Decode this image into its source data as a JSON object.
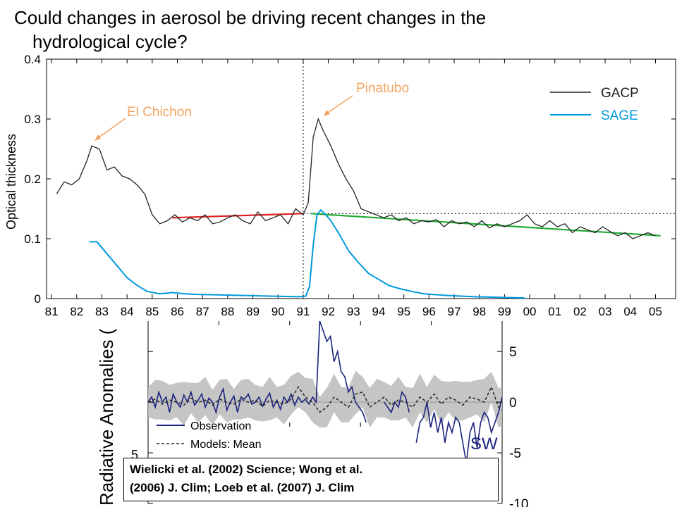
{
  "slide": {
    "title_line1": "Could changes in aerosol be driving recent changes in the",
    "title_line2": "hydrological  cycle?",
    "citation_line1": "Wielicki et al. (2002) Science; Wong et al.",
    "citation_line2": "(2006) J. Clim; Loeb et al. (2007) J. Clim"
  },
  "chart_data": [
    {
      "type": "line",
      "ylabel": "Optical thickness",
      "xlim": [
        1981,
        2006
      ],
      "ylim": [
        0,
        0.4
      ],
      "x_ticks": [
        1981,
        1982,
        1983,
        1984,
        1985,
        1986,
        1987,
        1988,
        1989,
        1990,
        1991,
        1992,
        1993,
        1994,
        1995,
        1996,
        1997,
        1998,
        1999,
        2000,
        2001,
        2002,
        2003,
        2004,
        2005
      ],
      "x_tick_labels": [
        "81",
        "82",
        "83",
        "84",
        "85",
        "86",
        "87",
        "88",
        "89",
        "90",
        "91",
        "92",
        "93",
        "94",
        "95",
        "96",
        "97",
        "98",
        "99",
        "00",
        "01",
        "02",
        "03",
        "04",
        "05"
      ],
      "y_ticks": [
        0,
        0.1,
        0.2,
        0.3,
        0.4
      ],
      "y_tick_labels": [
        "0",
        "0.1",
        "0.2",
        "0.3",
        "0.4"
      ],
      "legend_position": "top-right",
      "annotations": [
        {
          "text": "El Chichon",
          "color": "#f4a460",
          "points_to": [
            1982.6,
            0.26
          ]
        },
        {
          "text": "Pinatubo",
          "color": "#f4a460",
          "points_to": [
            1991.6,
            0.3
          ]
        }
      ],
      "series": [
        {
          "name": "GACP",
          "color": "#222222",
          "x": [
            1981.4,
            1981.7,
            1982.0,
            1982.3,
            1982.6,
            1982.8,
            1983.1,
            1983.4,
            1983.7,
            1984.0,
            1984.3,
            1984.6,
            1984.9,
            1985.2,
            1985.5,
            1985.8,
            1986.1,
            1986.4,
            1986.7,
            1987.0,
            1987.3,
            1987.6,
            1987.9,
            1988.2,
            1988.5,
            1988.8,
            1989.1,
            1989.4,
            1989.7,
            1990.0,
            1990.3,
            1990.6,
            1990.9,
            1991.2,
            1991.4,
            1991.6,
            1991.8,
            1992.0,
            1992.3,
            1992.6,
            1992.9,
            1993.2,
            1993.5,
            1993.8,
            1994.1,
            1994.4,
            1994.7,
            1995.0,
            1995.3,
            1995.6,
            1995.9,
            1996.2,
            1996.5,
            1996.8,
            1997.1,
            1997.4,
            1997.7,
            1998.0,
            1998.3,
            1998.6,
            1998.9,
            1999.2,
            1999.5,
            1999.8,
            2000.1,
            2000.4,
            2000.7,
            2001.0,
            2001.3,
            2001.6,
            2001.9,
            2002.2,
            2002.5,
            2002.8,
            2003.1,
            2003.4,
            2003.7,
            2004.0,
            2004.3,
            2004.6,
            2004.9,
            2005.2
          ],
          "y": [
            0.175,
            0.195,
            0.19,
            0.2,
            0.23,
            0.255,
            0.25,
            0.215,
            0.22,
            0.205,
            0.2,
            0.19,
            0.175,
            0.14,
            0.125,
            0.13,
            0.14,
            0.128,
            0.135,
            0.13,
            0.14,
            0.125,
            0.128,
            0.135,
            0.14,
            0.13,
            0.125,
            0.145,
            0.13,
            0.135,
            0.14,
            0.125,
            0.15,
            0.14,
            0.16,
            0.27,
            0.3,
            0.28,
            0.255,
            0.225,
            0.2,
            0.18,
            0.15,
            0.145,
            0.14,
            0.135,
            0.14,
            0.13,
            0.135,
            0.125,
            0.13,
            0.128,
            0.132,
            0.12,
            0.13,
            0.125,
            0.128,
            0.12,
            0.13,
            0.118,
            0.125,
            0.12,
            0.125,
            0.13,
            0.14,
            0.125,
            0.12,
            0.13,
            0.12,
            0.125,
            0.11,
            0.12,
            0.115,
            0.11,
            0.12,
            0.112,
            0.105,
            0.11,
            0.1,
            0.105,
            0.11,
            0.105
          ]
        },
        {
          "name": "SAGE",
          "color": "#0099dd",
          "x": [
            1982.7,
            1983.0,
            1983.4,
            1983.8,
            1984.2,
            1984.6,
            1985.0,
            1985.5,
            1986.0,
            1986.5,
            1987.0,
            1988.0,
            1989.0,
            1990.0,
            1991.0,
            1991.3,
            1991.45,
            1991.6,
            1991.75,
            1991.9,
            1992.1,
            1992.3,
            1992.6,
            1993.0,
            1993.4,
            1993.8,
            1994.2,
            1994.6,
            1995.0,
            1995.5,
            1996.0,
            1997.0,
            1998.0,
            1999.0,
            2000.0
          ],
          "y": [
            0.095,
            0.095,
            0.075,
            0.055,
            0.035,
            0.022,
            0.012,
            0.008,
            0.01,
            0.008,
            0.007,
            0.006,
            0.005,
            0.004,
            0.003,
            0.004,
            0.02,
            0.09,
            0.14,
            0.148,
            0.14,
            0.13,
            0.11,
            0.08,
            0.06,
            0.042,
            0.032,
            0.022,
            0.017,
            0.012,
            0.008,
            0.005,
            0.003,
            0.002,
            0.001
          ]
        }
      ],
      "trend_lines": [
        {
          "color": "#dd2222",
          "x": [
            1986.0,
            1991.2
          ],
          "y": [
            0.135,
            0.142
          ]
        },
        {
          "color": "#22aa33",
          "x": [
            1991.5,
            2005.4
          ],
          "y": [
            0.142,
            0.105
          ]
        }
      ],
      "reference_lines": [
        {
          "orientation": "vertical",
          "x": 1991.2,
          "style": "dotted"
        },
        {
          "orientation": "horizontal",
          "y": 0.142,
          "x_from": 1991.2,
          "style": "dotted"
        }
      ]
    },
    {
      "type": "line",
      "ylabel": "Radiative Anomalies (",
      "ylim": [
        -10,
        8
      ],
      "y_ticks": [
        5,
        0,
        -5,
        -10
      ],
      "y_tick_labels": [
        "5",
        "0",
        "-5",
        "-10"
      ],
      "partial_left_tick_label": "5",
      "corner_label": "SW",
      "legend_position": "bottom-left",
      "band": {
        "name": "model spread",
        "color": "#bbbbbb",
        "half_width": 1.5
      },
      "series": [
        {
          "name": "Observation",
          "color": "#1a237e",
          "x": [
            0,
            1,
            2,
            3,
            4,
            5,
            6,
            7,
            8,
            9,
            10,
            11,
            12,
            13,
            14,
            15,
            16,
            17,
            18,
            19,
            20,
            21,
            22,
            23,
            24,
            25,
            26,
            27,
            28,
            29,
            30,
            31,
            32,
            33,
            34,
            35,
            36,
            37,
            38,
            39,
            40,
            41,
            42,
            43,
            44,
            45,
            46,
            47,
            48,
            49,
            50,
            51,
            52,
            53,
            54,
            55,
            56,
            57,
            58,
            59,
            60,
            61,
            62,
            63,
            64,
            65,
            66,
            67,
            68,
            69,
            70,
            71,
            72,
            73,
            74,
            75,
            76,
            77,
            78,
            79,
            80,
            81,
            82,
            83,
            84,
            85,
            86,
            87,
            88,
            89,
            90,
            91,
            92,
            93,
            94,
            95,
            96,
            97,
            98,
            99
          ],
          "y": [
            0,
            0.5,
            -0.5,
            1,
            0,
            0.5,
            -1,
            0.8,
            0,
            -0.5,
            0.7,
            0,
            1,
            -0.3,
            0.2,
            0.8,
            -0.5,
            0.4,
            0,
            -1,
            0.5,
            1.3,
            -0.8,
            0,
            0.6,
            -1,
            0.5,
            0.3,
            0.8,
            -0.2,
            0,
            0.5,
            -0.4,
            0.3,
            0.9,
            -0.5,
            0.2,
            -0.7,
            0.5,
            0,
            0.8,
            -0.3,
            0.5,
            0,
            0.3,
            -0.2,
            0.5,
            0,
            8,
            7,
            6,
            6.5,
            4,
            5,
            3,
            2.5,
            1,
            1.5,
            0,
            -0.5,
            -1,
            -2,
            null,
            null,
            null,
            null,
            0,
            -0.5,
            -1,
            0,
            -0.5,
            1,
            0.5,
            -1,
            null,
            -4,
            -2,
            -1.5,
            0,
            -2.5,
            -1,
            -3,
            -1.5,
            -4,
            -2,
            -3,
            -1.5,
            -2,
            -4,
            -6,
            -3,
            -2,
            -4.5,
            -2,
            -1,
            -1.5,
            -3,
            -2,
            -1,
            0.5
          ]
        },
        {
          "name": "Models: Mean",
          "color": "#222222",
          "dash": "4,3",
          "x": [
            0,
            2,
            4,
            6,
            8,
            10,
            12,
            14,
            16,
            18,
            20,
            22,
            24,
            26,
            28,
            30,
            32,
            34,
            36,
            38,
            40,
            42,
            44,
            46,
            48,
            50,
            52,
            54,
            56,
            58,
            60,
            62,
            64,
            66,
            68,
            70,
            72,
            74,
            76,
            78,
            80,
            82,
            84,
            86,
            88,
            90,
            92,
            94,
            96,
            98,
            99
          ],
          "y": [
            0,
            0.3,
            -0.2,
            0.2,
            0,
            -0.3,
            0.4,
            0,
            0.2,
            -0.3,
            0.3,
            0,
            -0.2,
            0.3,
            0,
            0.2,
            -0.4,
            0.2,
            0,
            -0.2,
            0.3,
            1.5,
            0.5,
            0,
            -1,
            -0.5,
            0.5,
            0,
            -0.5,
            0.8,
            1,
            -0.5,
            0,
            0.5,
            -0.3,
            0.2,
            0,
            -0.5,
            0.5,
            0,
            0.8,
            -0.2,
            0.5,
            0.2,
            -0.3,
            0.5,
            0.3,
            0,
            1.5,
            -0.5,
            -0.8
          ]
        }
      ]
    }
  ]
}
